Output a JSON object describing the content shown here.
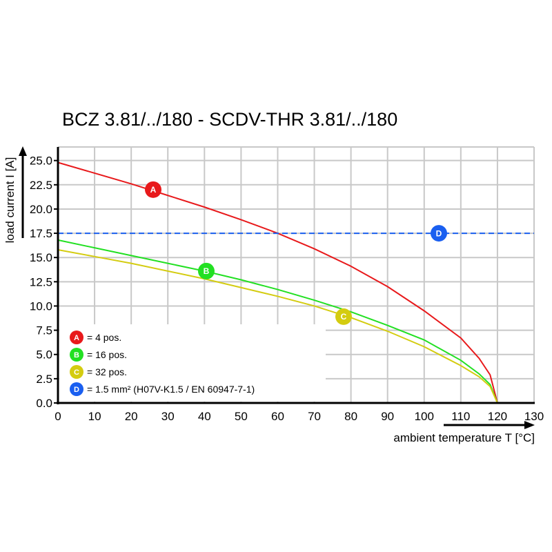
{
  "chart_data": {
    "type": "line",
    "title": "BCZ 3.81/../180 - SCDV-THR 3.81/../180",
    "xlabel": "ambient temperature T [°C]",
    "ylabel": "load current I [A]",
    "xlim": [
      0,
      130
    ],
    "ylim": [
      0,
      26.4
    ],
    "grid": true,
    "x_ticks": [
      "0",
      "10",
      "20",
      "30",
      "40",
      "50",
      "60",
      "70",
      "80",
      "90",
      "100",
      "110",
      "120",
      "130"
    ],
    "y_ticks": [
      "0.0",
      "2.5",
      "5.0",
      "7.5",
      "10.0",
      "12.5",
      "15.0",
      "17.5",
      "20.0",
      "22.5",
      "25.0"
    ],
    "x": [
      0,
      10,
      20,
      30,
      40,
      50,
      60,
      70,
      80,
      90,
      100,
      110,
      115,
      118,
      120
    ],
    "series": [
      {
        "marker": "A",
        "color": "#e8191b",
        "values": [
          24.8,
          23.7,
          22.6,
          21.4,
          20.2,
          18.9,
          17.5,
          15.9,
          14.1,
          12.0,
          9.5,
          6.7,
          4.6,
          2.9,
          0
        ],
        "marker_at": [
          26,
          22.0
        ]
      },
      {
        "marker": "B",
        "color": "#22e022",
        "values": [
          16.8,
          16.0,
          15.2,
          14.4,
          13.6,
          12.7,
          11.7,
          10.6,
          9.4,
          8.0,
          6.5,
          4.4,
          3.0,
          1.9,
          0
        ],
        "marker_at": [
          40.5,
          13.6
        ]
      },
      {
        "marker": "C",
        "color": "#d4cc10",
        "values": [
          15.8,
          15.1,
          14.4,
          13.6,
          12.8,
          11.9,
          11.0,
          10.0,
          8.8,
          7.4,
          5.8,
          3.85,
          2.7,
          1.7,
          0
        ],
        "marker_at": [
          78,
          8.9
        ]
      },
      {
        "marker": "D",
        "color": "#1a5ff0",
        "dashed": true,
        "values": [
          17.5,
          17.5
        ],
        "x": [
          0,
          130
        ],
        "marker_at": [
          104,
          17.5
        ]
      }
    ],
    "legend": {
      "placement": "bottom-left",
      "entries": [
        {
          "marker": "A",
          "color": "#e8191b",
          "label": "= 4 pos."
        },
        {
          "marker": "B",
          "color": "#22e022",
          "label": "= 16 pos."
        },
        {
          "marker": "C",
          "color": "#d4cc10",
          "label": "= 32 pos."
        },
        {
          "marker": "D",
          "color": "#1a5ff0",
          "label": "= 1.5 mm² (H07V-K1.5 / EN 60947-7-1)"
        }
      ]
    }
  }
}
